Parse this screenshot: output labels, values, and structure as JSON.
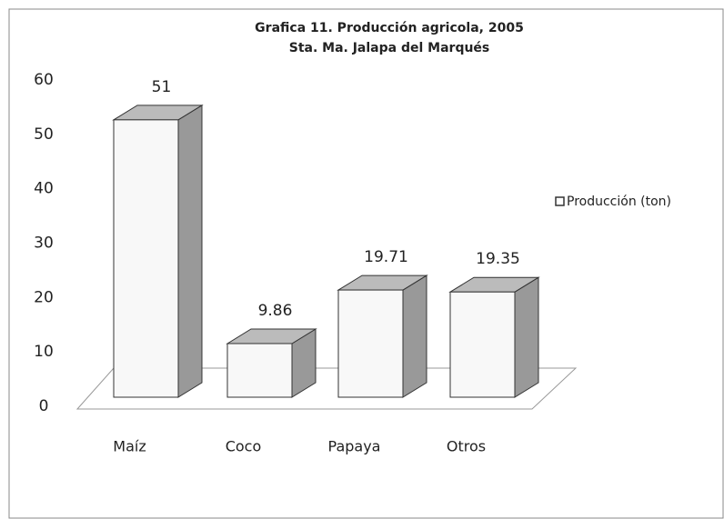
{
  "chart_data": {
    "type": "bar3d",
    "title": "Grafica 11. Producción agricola, 2005",
    "subtitle": "Sta. Ma. Jalapa del Marqués",
    "categories": [
      "Maíz",
      "Coco",
      "Papaya",
      "Otros"
    ],
    "series": [
      {
        "name": "Producción (ton)",
        "color": "#f8f8f8",
        "values": [
          51,
          9.86,
          19.71,
          19.35
        ]
      }
    ],
    "ylim": [
      0,
      60
    ],
    "yticks": [
      0,
      10,
      20,
      30,
      40,
      50,
      60
    ],
    "grid": false,
    "legend": "right"
  }
}
